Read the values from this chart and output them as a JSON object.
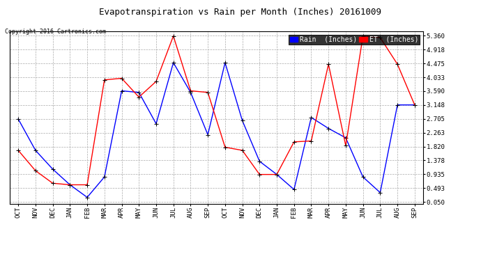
{
  "title": "Evapotranspiration vs Rain per Month (Inches) 20161009",
  "copyright": "Copyright 2016 Cartronics.com",
  "legend_rain": "Rain  (Inches)",
  "months": [
    "OCT",
    "NOV",
    "DEC",
    "JAN",
    "FEB",
    "MAR",
    "APR",
    "MAY",
    "JUN",
    "JUL",
    "AUG",
    "SEP",
    "OCT",
    "NOV",
    "DEC",
    "JAN",
    "FEB",
    "MAR",
    "APR",
    "MAY",
    "JUN",
    "JUL",
    "AUG",
    "SEP"
  ],
  "rain_values": [
    2.7,
    1.7,
    1.1,
    0.6,
    0.2,
    0.85,
    3.6,
    3.55,
    2.55,
    4.5,
    3.55,
    2.2,
    4.5,
    2.65,
    1.35,
    0.93,
    0.45,
    2.75,
    2.4,
    2.1,
    0.85,
    0.35,
    3.15,
    3.15
  ],
  "et_values": [
    1.7,
    1.05,
    0.65,
    0.6,
    0.6,
    3.95,
    4.0,
    3.4,
    3.9,
    5.35,
    3.6,
    3.55,
    1.8,
    1.7,
    0.93,
    0.93,
    1.97,
    2.0,
    4.45,
    1.85,
    5.35,
    5.3,
    4.45,
    3.15
  ],
  "rain_color": "#0000FF",
  "et_color": "#FF0000",
  "background_color": "#FFFFFF",
  "grid_color": "#AAAAAA",
  "yticks": [
    0.05,
    0.493,
    0.935,
    1.378,
    1.82,
    2.263,
    2.705,
    3.148,
    3.59,
    4.033,
    4.475,
    4.918,
    5.36
  ],
  "ylim": [
    0.0,
    5.5
  ],
  "title_fontsize": 9,
  "copyright_fontsize": 6,
  "legend_fontsize": 7,
  "tick_fontsize": 6.5
}
